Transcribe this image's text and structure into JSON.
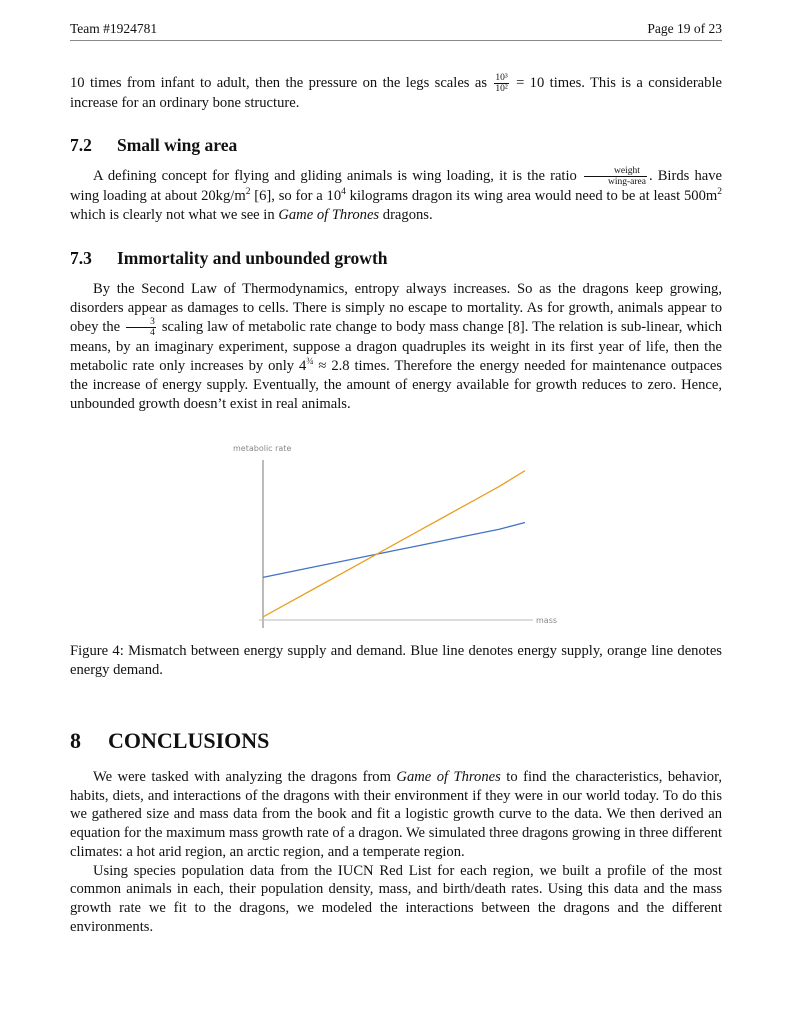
{
  "header": {
    "left": "Team #1924781",
    "right": "Page 19 of 23"
  },
  "intro_para": {
    "text_before": "10 times from infant to adult, then the pressure on the legs scales as ",
    "frac_num": "10³",
    "frac_den": "10²",
    "text_after": " = 10 times.  This is a considerable increase for an ordinary bone structure."
  },
  "section_7_2": {
    "number": "7.2",
    "title": "Small wing area",
    "p1_a": "A defining concept for flying and gliding animals is wing loading, it is the ratio ",
    "frac_num": "weight",
    "frac_den": "wing-area",
    "p1_b": ". Birds have wing loading at about 20kg/m",
    "p1_b_sup": "2",
    "p1_c": " [6], so for a 10",
    "p1_c_sup": "4",
    "p1_d": " kilograms dragon its wing area would need to be at least 500m",
    "p1_d_sup": "2",
    "p1_e": " which is clearly not what we see in ",
    "p1_em": "Game of Thrones",
    "p1_f": " dragons."
  },
  "section_7_3": {
    "number": "7.3",
    "title": "Immortality and unbounded growth",
    "p_a": "By the Second Law of Thermodynamics, entropy always increases.  So as the dragons keep growing, disorders appear as damages to cells.  There is simply no escape to mortality.  As for growth, animals appear to obey the ",
    "frac_num": "3",
    "frac_den": "4",
    "p_b": " scaling law of metabolic rate change to body mass change [8]. The relation is sub-linear, which means, by an imaginary experiment, suppose a dragon quadruples its weight in its first year of life, then the metabolic rate only increases by only 4",
    "p_b_sup": "¾",
    "p_c": " ≈ 2.8 times. Therefore the energy needed for maintenance outpaces the increase of energy supply.  Eventually, the amount of energy available for growth reduces to zero. Hence, unbounded growth doesn’t exist in real animals."
  },
  "chart_data": {
    "type": "line",
    "title": "",
    "xlabel": "mass",
    "ylabel": "metabolic rate",
    "x": [
      0,
      1,
      2,
      3,
      4,
      5,
      6,
      7,
      8,
      9,
      10
    ],
    "series": [
      {
        "values": [
          2.6,
          2.95,
          3.3,
          3.65,
          4.0,
          4.35,
          4.7,
          5.05,
          5.4,
          5.75,
          6.2
        ],
        "color": "#4472c4"
      },
      {
        "values": [
          0.0,
          0.95,
          1.9,
          2.85,
          3.8,
          4.75,
          5.7,
          6.65,
          7.6,
          8.55,
          9.6
        ],
        "color": "#e8a020"
      }
    ],
    "xlim": [
      0,
      10
    ],
    "ylim": [
      -0.2,
      10.3
    ],
    "grid": false,
    "legend": "none"
  },
  "figure": {
    "caption": "Figure 4: Mismatch between energy supply and demand. Blue line denotes energy supply, orange line denotes energy demand."
  },
  "section_8": {
    "number": "8",
    "title": "CONCLUSIONS",
    "p1_a": "We were tasked with analyzing the dragons from ",
    "p1_em": "Game of Thrones",
    "p1_b": " to find the characteristics, behavior, habits, diets, and interactions of the dragons with their environment if they were in our world today.  To do this we gathered size and mass data from the book and fit a logistic growth curve to the data.  We then derived an equation for the maximum mass growth rate of a dragon. We simulated three dragons growing in three different climates: a hot arid region, an arctic region, and a temperate region.",
    "p2": "Using species population data from the IUCN Red List for each region, we built a profile of the most common animals in each, their population density, mass, and birth/death rates.  Using this data and the mass growth rate we fit to the dragons, we modeled the interactions between the dragons and the different environments."
  }
}
